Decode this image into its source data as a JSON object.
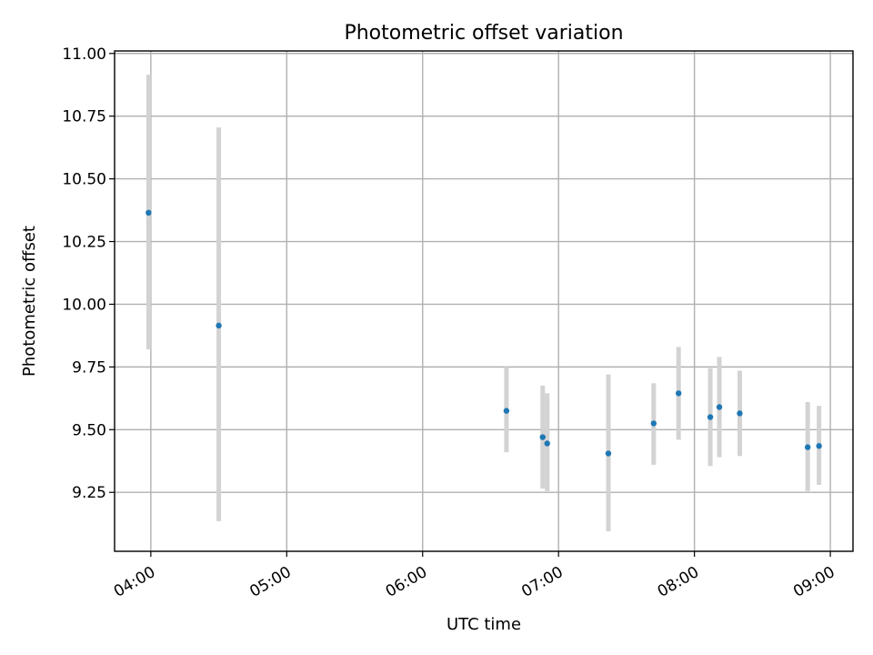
{
  "chart_data": {
    "type": "scatter",
    "title": "Photometric offset variation",
    "xlabel": "UTC time",
    "ylabel": "Photometric offset",
    "x_axis": {
      "type": "time",
      "range": [
        "03:44",
        "09:10"
      ],
      "ticks": [
        "04:00",
        "05:00",
        "06:00",
        "07:00",
        "08:00",
        "09:00"
      ]
    },
    "y_axis": {
      "range": [
        9.015,
        11.01
      ],
      "ticks": [
        "9.25",
        "9.50",
        "9.75",
        "10.00",
        "10.25",
        "10.50",
        "10.75",
        "11.00"
      ]
    },
    "grid": true,
    "colors": {
      "point": "#1f77b4",
      "errorbar": "#d3d3d3",
      "grid": "#b0b0b0"
    },
    "points": [
      {
        "t": "03:59",
        "y": 10.365,
        "lo": 9.82,
        "hi": 10.915
      },
      {
        "t": "04:30",
        "y": 9.915,
        "lo": 9.135,
        "hi": 10.705
      },
      {
        "t": "06:37",
        "y": 9.575,
        "lo": 9.41,
        "hi": 9.75
      },
      {
        "t": "06:53",
        "y": 9.47,
        "lo": 9.265,
        "hi": 9.675
      },
      {
        "t": "06:55",
        "y": 9.445,
        "lo": 9.255,
        "hi": 9.645
      },
      {
        "t": "07:22",
        "y": 9.405,
        "lo": 9.095,
        "hi": 9.72
      },
      {
        "t": "07:42",
        "y": 9.525,
        "lo": 9.36,
        "hi": 9.685
      },
      {
        "t": "07:53",
        "y": 9.645,
        "lo": 9.46,
        "hi": 9.83
      },
      {
        "t": "08:07",
        "y": 9.55,
        "lo": 9.355,
        "hi": 9.745
      },
      {
        "t": "08:11",
        "y": 9.59,
        "lo": 9.39,
        "hi": 9.79
      },
      {
        "t": "08:20",
        "y": 9.565,
        "lo": 9.395,
        "hi": 9.735
      },
      {
        "t": "08:50",
        "y": 9.43,
        "lo": 9.255,
        "hi": 9.61
      },
      {
        "t": "08:55",
        "y": 9.435,
        "lo": 9.28,
        "hi": 9.595
      }
    ]
  }
}
